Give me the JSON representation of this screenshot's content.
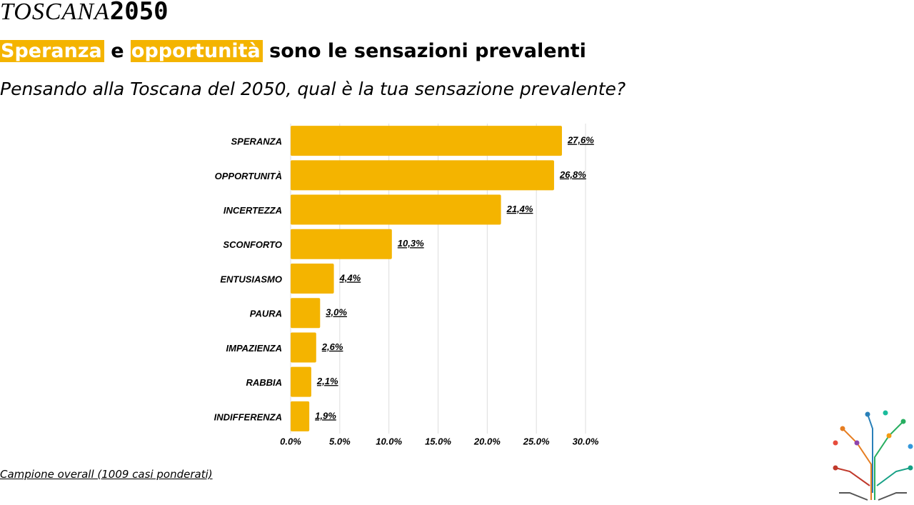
{
  "header": {
    "logo_word": "TOSCANA",
    "logo_number": "2050",
    "headline": [
      "Speranza",
      "e",
      "opportunità",
      "sono le sensazioni prevalenti"
    ]
  },
  "chart_data": {
    "type": "bar",
    "orientation": "horizontal",
    "subtitle": "Pensando alla Toscana del 2050, qual è la tua sensazione prevalente?",
    "categories": [
      "SPERANZA",
      "OPPORTUNITÀ",
      "INCERTEZZA",
      "SCONFORTO",
      "ENTUSIASMO",
      "PAURA",
      "IMPAZIENZA",
      "RABBIA",
      "INDIFFERENZA"
    ],
    "values": [
      27.6,
      26.8,
      21.4,
      10.3,
      4.4,
      3.0,
      2.6,
      2.1,
      1.9
    ],
    "value_labels": [
      "27,6%",
      "26,8%",
      "21,4%",
      "10,3%",
      "4,4%",
      "3,0%",
      "2,6%",
      "2,1%",
      "1,9%"
    ],
    "color": "#f4b400",
    "xlim": [
      0,
      30
    ],
    "xticks": [
      {
        "value": 0,
        "label": "0.0%"
      },
      {
        "value": 5,
        "label": "5.0%"
      },
      {
        "value": 10,
        "label": "10.0%"
      },
      {
        "value": 15,
        "label": "15.0%"
      },
      {
        "value": 20,
        "label": "20.0%"
      },
      {
        "value": 25,
        "label": "25.0%"
      },
      {
        "value": 30,
        "label": "30.0%"
      }
    ],
    "grid": true,
    "note": "Campione overall (1009 casi ponderati)"
  }
}
